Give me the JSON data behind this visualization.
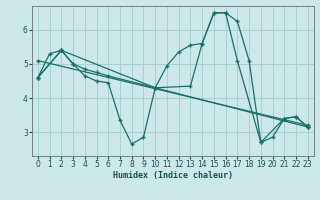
{
  "xlabel": "Humidex (Indice chaleur)",
  "bg_color": "#cce8e8",
  "grid_color": "#a8d0d0",
  "line_color": "#1a7068",
  "xlim": [
    -0.5,
    23.5
  ],
  "ylim": [
    2.3,
    6.7
  ],
  "yticks": [
    3,
    4,
    5,
    6
  ],
  "xticks": [
    0,
    1,
    2,
    3,
    4,
    5,
    6,
    7,
    8,
    9,
    10,
    11,
    12,
    13,
    14,
    15,
    16,
    17,
    18,
    19,
    20,
    21,
    22,
    23
  ],
  "line1_x": [
    0,
    1,
    2,
    3,
    4,
    5,
    6,
    7,
    8,
    9,
    10,
    11,
    12,
    13,
    14,
    15,
    16,
    17,
    18,
    19,
    20,
    21,
    22,
    23
  ],
  "line1_y": [
    4.6,
    5.3,
    5.4,
    5.0,
    4.65,
    4.5,
    4.45,
    3.35,
    2.65,
    2.85,
    4.3,
    4.95,
    5.35,
    5.55,
    5.6,
    6.5,
    6.5,
    6.25,
    5.1,
    2.7,
    2.85,
    3.4,
    3.45,
    3.15
  ],
  "line2_x": [
    0,
    2,
    3,
    4,
    5,
    6,
    10,
    13,
    14,
    15,
    16,
    17,
    19,
    21,
    22,
    23
  ],
  "line2_y": [
    4.6,
    5.4,
    5.0,
    4.85,
    4.75,
    4.65,
    4.3,
    4.35,
    5.6,
    6.5,
    6.5,
    5.1,
    2.7,
    3.4,
    3.45,
    3.15
  ],
  "line3_x": [
    0,
    2,
    10,
    23
  ],
  "line3_y": [
    4.6,
    5.4,
    4.3,
    3.15
  ],
  "line4_x": [
    0,
    23
  ],
  "line4_y": [
    5.1,
    3.2
  ]
}
